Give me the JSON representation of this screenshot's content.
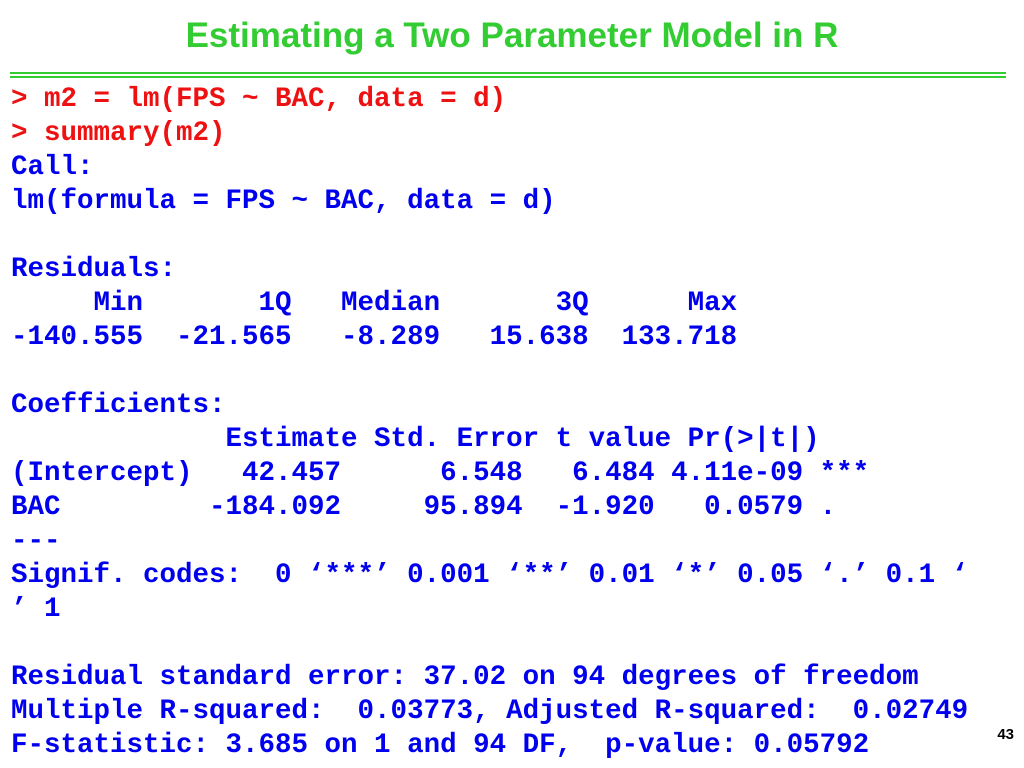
{
  "title": "Estimating a Two Parameter Model in R",
  "commands": [
    "> m2 = lm(FPS ~ BAC, data = d)",
    "> summary(m2)"
  ],
  "output": [
    "Call:",
    "lm(formula = FPS ~ BAC, data = d)",
    "Residuals:",
    "     Min       1Q   Median       3Q      Max",
    "-140.555  -21.565   -8.289   15.638  133.718",
    "Coefficients:",
    "             Estimate Std. Error t value Pr(>|t|)",
    "(Intercept)   42.457      6.548   6.484 4.11e-09 ***",
    "BAC         -184.092     95.894  -1.920   0.0579 .",
    "---",
    "Signif. codes:  0 ‘***’ 0.001 ‘**’ 0.01 ‘*’ 0.05 ‘.’ 0.1 ‘",
    "’ 1",
    "Residual standard error: 37.02 on 94 degrees of freedom",
    "Multiple R-squared:  0.03773, Adjusted R-squared:  0.02749",
    "F-statistic: 3.685 on 1 and 94 DF,  p-value: 0.05792"
  ],
  "page_number": "43"
}
